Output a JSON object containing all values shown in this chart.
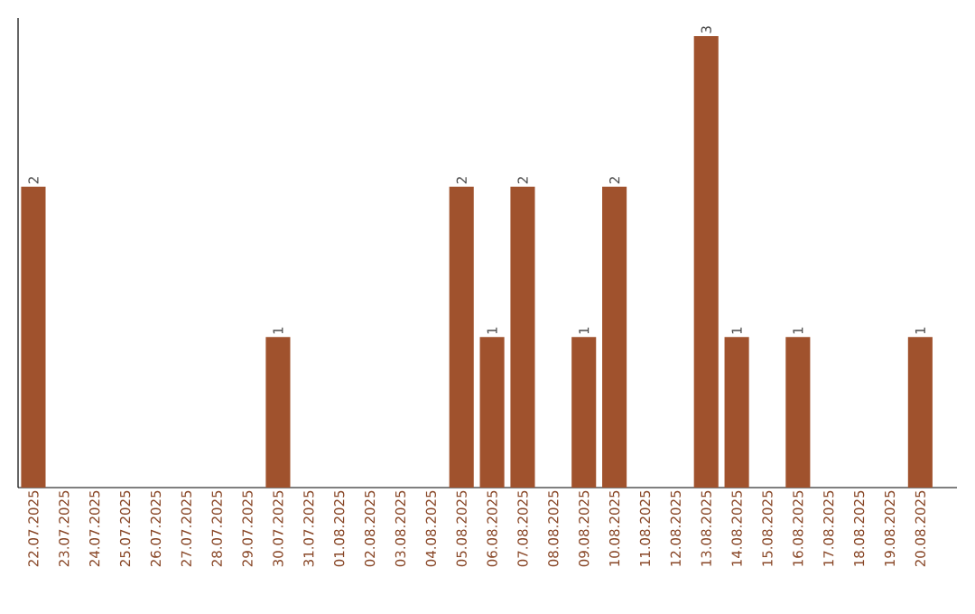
{
  "chart_data": {
    "type": "bar",
    "categories": [
      "22.07.2025",
      "23.07.2025",
      "24.07.2025",
      "25.07.2025",
      "26.07.2025",
      "27.07.2025",
      "28.07.2025",
      "29.07.2025",
      "30.07.2025",
      "31.07.2025",
      "01.08.2025",
      "02.08.2025",
      "03.08.2025",
      "04.08.2025",
      "05.08.2025",
      "06.08.2025",
      "07.08.2025",
      "08.08.2025",
      "09.08.2025",
      "10.08.2025",
      "11.08.2025",
      "12.08.2025",
      "13.08.2025",
      "14.08.2025",
      "15.08.2025",
      "16.08.2025",
      "17.08.2025",
      "18.08.2025",
      "19.08.2025",
      "20.08.2025"
    ],
    "values": [
      2,
      0,
      0,
      0,
      0,
      0,
      0,
      0,
      1,
      0,
      0,
      0,
      0,
      0,
      2,
      1,
      2,
      0,
      1,
      2,
      0,
      0,
      3,
      1,
      0,
      1,
      0,
      0,
      0,
      1
    ],
    "value_labels": [
      "2",
      null,
      null,
      null,
      null,
      null,
      null,
      null,
      "1",
      null,
      null,
      null,
      null,
      null,
      "2",
      "1",
      "2",
      null,
      "1",
      "2",
      null,
      null,
      "3",
      "1",
      null,
      "1",
      null,
      null,
      null,
      "1"
    ],
    "color": "#a0522d"
  }
}
